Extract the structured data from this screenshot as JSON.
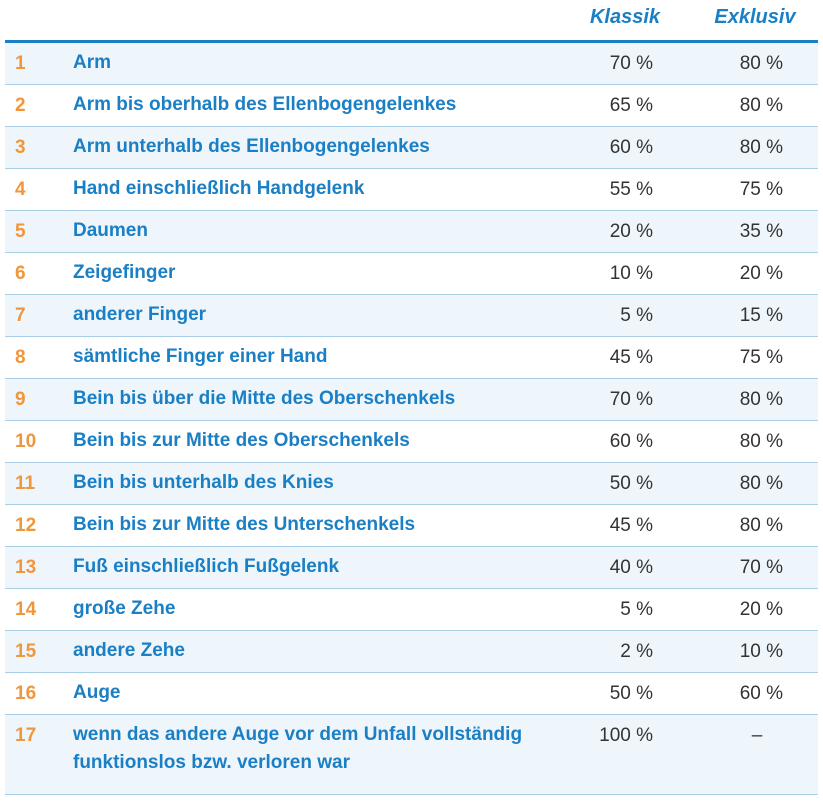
{
  "header": {
    "col_klassik": "Klassik",
    "col_exklusiv": "Exklusiv"
  },
  "rows": [
    {
      "num": "1",
      "label": "Arm",
      "klassik": "70 %",
      "exklusiv": "80 %"
    },
    {
      "num": "2",
      "label": "Arm bis oberhalb des Ellenbogengelenkes",
      "klassik": "65 %",
      "exklusiv": "80 %"
    },
    {
      "num": "3",
      "label": "Arm unterhalb des Ellenbogengelenkes",
      "klassik": "60 %",
      "exklusiv": "80 %"
    },
    {
      "num": "4",
      "label": "Hand einschließlich Handgelenk",
      "klassik": "55 %",
      "exklusiv": "75 %"
    },
    {
      "num": "5",
      "label": "Daumen",
      "klassik": "20 %",
      "exklusiv": "35 %"
    },
    {
      "num": "6",
      "label": "Zeigefinger",
      "klassik": "10 %",
      "exklusiv": "20 %"
    },
    {
      "num": "7",
      "label": "anderer Finger",
      "klassik": "5 %",
      "exklusiv": "15 %"
    },
    {
      "num": "8",
      "label": "sämtliche Finger einer Hand",
      "klassik": "45 %",
      "exklusiv": "75 %"
    },
    {
      "num": "9",
      "label": "Bein bis über die Mitte des Oberschenkels",
      "klassik": "70 %",
      "exklusiv": "80 %"
    },
    {
      "num": "10",
      "label": "Bein bis zur Mitte des Oberschenkels",
      "klassik": "60 %",
      "exklusiv": "80 %"
    },
    {
      "num": "11",
      "label": "Bein bis unterhalb des Knies",
      "klassik": "50 %",
      "exklusiv": "80 %"
    },
    {
      "num": "12",
      "label": "Bein bis zur Mitte des Unterschenkels",
      "klassik": "45 %",
      "exklusiv": "80 %"
    },
    {
      "num": "13",
      "label": "Fuß einschließlich Fußgelenk",
      "klassik": "40 %",
      "exklusiv": "70 %"
    },
    {
      "num": "14",
      "label": "große Zehe",
      "klassik": "5 %",
      "exklusiv": "20 %"
    },
    {
      "num": "15",
      "label": "andere Zehe",
      "klassik": "2 %",
      "exklusiv": "10 %"
    },
    {
      "num": "16",
      "label": "Auge",
      "klassik": "50 %",
      "exklusiv": "60 %"
    },
    {
      "num": "17",
      "label": "wenn das andere Auge vor dem Unfall vollständig funktionslos bzw. verloren war",
      "klassik": "100 %",
      "exklusiv": "–"
    }
  ]
}
